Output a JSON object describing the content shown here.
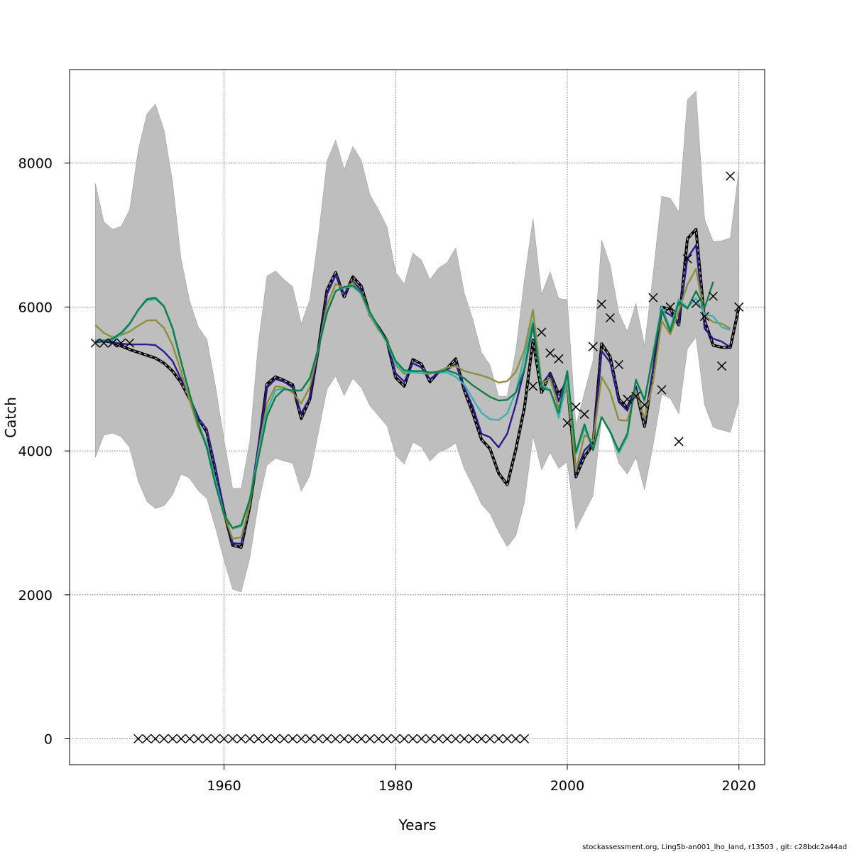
{
  "chart_data": {
    "type": "line",
    "xlabel": "Years",
    "ylabel": "Catch",
    "xlim": [
      1942,
      2023
    ],
    "ylim": [
      -360,
      9300
    ],
    "x_ticks": [
      1960,
      1980,
      2000,
      2020
    ],
    "y_ticks": [
      0,
      2000,
      4000,
      6000,
      8000
    ],
    "grid": true,
    "band": {
      "color": "#bebebe",
      "years": [
        1945,
        1946,
        1947,
        1948,
        1949,
        1950,
        1951,
        1952,
        1953,
        1954,
        1955,
        1956,
        1957,
        1958,
        1959,
        1960,
        1961,
        1962,
        1963,
        1964,
        1965,
        1966,
        1967,
        1968,
        1969,
        1970,
        1971,
        1972,
        1973,
        1974,
        1975,
        1976,
        1977,
        1978,
        1979,
        1980,
        1981,
        1982,
        1983,
        1984,
        1985,
        1986,
        1987,
        1988,
        1989,
        1990,
        1991,
        1992,
        1993,
        1994,
        1995,
        1996,
        1997,
        1998,
        1999,
        2000,
        2001,
        2002,
        2003,
        2004,
        2005,
        2006,
        2007,
        2008,
        2009,
        2010,
        2011,
        2012,
        2013,
        2014,
        2015,
        2016,
        2017,
        2018,
        2019,
        2020
      ],
      "upper": [
        7720,
        7180,
        7080,
        7120,
        7350,
        8180,
        8680,
        8820,
        8460,
        7740,
        6660,
        6080,
        5720,
        5550,
        4900,
        4150,
        3480,
        3480,
        4130,
        5500,
        6430,
        6500,
        6380,
        6280,
        5770,
        6100,
        6980,
        8030,
        8320,
        7910,
        8230,
        8040,
        7560,
        7350,
        7110,
        6480,
        6320,
        6750,
        6650,
        6380,
        6540,
        6620,
        6820,
        6190,
        5820,
        5370,
        5190,
        4760,
        4760,
        5390,
        6380,
        7230,
        6170,
        6490,
        6120,
        6100,
        4350,
        4810,
        5260,
        6930,
        6580,
        5920,
        5660,
        6050,
        5460,
        6460,
        7540,
        7510,
        7320,
        8880,
        9000,
        7220,
        6910,
        6920,
        6960,
        7910
      ],
      "lower": [
        3910,
        4220,
        4250,
        4200,
        4050,
        3580,
        3300,
        3200,
        3240,
        3390,
        3680,
        3620,
        3450,
        3340,
        2930,
        2480,
        2080,
        2040,
        2510,
        3270,
        3800,
        3900,
        3860,
        3830,
        3440,
        3660,
        4260,
        4860,
        5040,
        4770,
        5010,
        4880,
        4630,
        4490,
        4350,
        3940,
        3820,
        4120,
        4060,
        3860,
        3980,
        4030,
        4110,
        3750,
        3520,
        3260,
        3130,
        2880,
        2670,
        2820,
        3290,
        4210,
        3740,
        3980,
        3760,
        3850,
        2910,
        3150,
        3380,
        4460,
        4260,
        3830,
        3680,
        3910,
        3460,
        4080,
        4790,
        4730,
        4520,
        5420,
        5580,
        4640,
        4330,
        4290,
        4260,
        4700
      ]
    },
    "series": [
      {
        "color": "#000000",
        "dashed": true,
        "years": [
          1945,
          1946,
          1947,
          1948,
          1949,
          1950,
          1951,
          1952,
          1953,
          1954,
          1955,
          1956,
          1957,
          1958,
          1959,
          1960,
          1961,
          1962,
          1963,
          1964,
          1965,
          1966,
          1967,
          1968,
          1969,
          1970,
          1971,
          1972,
          1973,
          1974,
          1975,
          1976,
          1977,
          1978,
          1979,
          1980,
          1981,
          1982,
          1983,
          1984,
          1985,
          1986,
          1987,
          1988,
          1989,
          1990,
          1991,
          1992,
          1993,
          1994,
          1995,
          1996,
          1997,
          1998,
          1999,
          2000,
          2001,
          2002,
          2003,
          2004,
          2005,
          2006,
          2007,
          2008,
          2009,
          2010,
          2011,
          2012,
          2013,
          2014,
          2015,
          2016,
          2017,
          2018,
          2019,
          2020
        ],
        "values": [
          5520,
          5530,
          5510,
          5460,
          5410,
          5370,
          5330,
          5290,
          5220,
          5110,
          4950,
          4720,
          4450,
          4260,
          3720,
          3150,
          2690,
          2660,
          3230,
          4020,
          4930,
          5030,
          4980,
          4920,
          4450,
          4720,
          5420,
          6240,
          6480,
          6140,
          6420,
          6290,
          5890,
          5720,
          5530,
          5020,
          4900,
          5270,
          5210,
          4960,
          5100,
          5150,
          5280,
          4840,
          4520,
          4160,
          4030,
          3690,
          3530,
          4020,
          4600,
          5540,
          4810,
          5080,
          4790,
          4940,
          3640,
          3920,
          4090,
          5490,
          5310,
          4720,
          4600,
          4850,
          4340,
          5090,
          6000,
          5970,
          5750,
          6950,
          7080,
          5810,
          5470,
          5440,
          5440,
          6000
        ]
      },
      {
        "color": "#2b1b8c",
        "dashed": false,
        "years": [
          1945,
          1946,
          1947,
          1948,
          1949,
          1950,
          1951,
          1952,
          1953,
          1954,
          1955,
          1956,
          1957,
          1958,
          1959,
          1960,
          1961,
          1962,
          1963,
          1964,
          1965,
          1966,
          1967,
          1968,
          1969,
          1970,
          1971,
          1972,
          1973,
          1974,
          1975,
          1976,
          1977,
          1978,
          1979,
          1980,
          1981,
          1982,
          1983,
          1984,
          1985,
          1986,
          1987,
          1988,
          1989,
          1990,
          1991,
          1992,
          1993,
          1994,
          1995,
          1996,
          1997,
          1998,
          1999,
          2000,
          2001,
          2002,
          2003,
          2004,
          2005,
          2006,
          2007,
          2008,
          2009,
          2010,
          2011,
          2012,
          2013,
          2014,
          2015,
          2016,
          2017,
          2018,
          2019
        ],
        "values": [
          5510,
          5520,
          5510,
          5490,
          5480,
          5480,
          5480,
          5470,
          5380,
          5250,
          5000,
          4750,
          4460,
          4300,
          3780,
          3160,
          2720,
          2710,
          3280,
          4080,
          4880,
          5000,
          4960,
          4880,
          4520,
          4740,
          5390,
          6180,
          6440,
          6180,
          6360,
          6230,
          5890,
          5690,
          5530,
          5080,
          4960,
          5220,
          5160,
          5000,
          5080,
          5130,
          5210,
          4880,
          4610,
          4240,
          4190,
          4050,
          4240,
          4650,
          5130,
          5740,
          4930,
          5080,
          4690,
          5060,
          3690,
          4010,
          4130,
          5390,
          5230,
          4680,
          4560,
          4900,
          4410,
          5150,
          5960,
          5890,
          5790,
          6680,
          6860,
          5700,
          5560,
          5520,
          5440
        ]
      },
      {
        "color": "#8f8e3a",
        "dashed": false,
        "years": [
          1945,
          1946,
          1947,
          1948,
          1949,
          1950,
          1951,
          1952,
          1953,
          1954,
          1955,
          1956,
          1957,
          1958,
          1959,
          1960,
          1961,
          1962,
          1963,
          1964,
          1965,
          1966,
          1967,
          1968,
          1969,
          1970,
          1971,
          1972,
          1973,
          1974,
          1975,
          1976,
          1977,
          1978,
          1979,
          1980,
          1981,
          1982,
          1983,
          1984,
          1985,
          1986,
          1987,
          1988,
          1989,
          1990,
          1991,
          1992,
          1993,
          1994,
          1995,
          1996,
          1997,
          1998,
          1999,
          2000,
          2001,
          2002,
          2003,
          2004,
          2005,
          2006,
          2007,
          2008,
          2009,
          2010,
          2011,
          2012,
          2013,
          2014,
          2015,
          2016,
          2017,
          2018,
          2019
        ],
        "values": [
          5750,
          5640,
          5580,
          5610,
          5660,
          5740,
          5810,
          5820,
          5710,
          5470,
          5100,
          4700,
          4320,
          4080,
          3580,
          3120,
          2780,
          2800,
          3250,
          3990,
          4660,
          4900,
          4880,
          4810,
          4660,
          4890,
          5420,
          6030,
          6320,
          6260,
          6340,
          6170,
          5880,
          5680,
          5540,
          5190,
          5070,
          5100,
          5080,
          5070,
          5110,
          5160,
          5180,
          5110,
          5080,
          5050,
          5010,
          4950,
          4970,
          5100,
          5400,
          5960,
          4950,
          5000,
          4600,
          4890,
          3720,
          4220,
          4140,
          5030,
          4820,
          4430,
          4420,
          4830,
          4450,
          4960,
          5810,
          5620,
          5950,
          6310,
          6530,
          5880,
          5790,
          5770,
          5700
        ]
      },
      {
        "color": "#3cb0b2",
        "dashed": false,
        "years": [
          1945,
          1946,
          1947,
          1948,
          1949,
          1950,
          1951,
          1952,
          1953,
          1954,
          1955,
          1956,
          1957,
          1958,
          1959,
          1960,
          1961,
          1962,
          1963,
          1964,
          1965,
          1966,
          1967,
          1968,
          1969,
          1970,
          1971,
          1972,
          1973,
          1974,
          1975,
          1976,
          1977,
          1978,
          1979,
          1980,
          1981,
          1982,
          1983,
          1984,
          1985,
          1986,
          1987,
          1988,
          1989,
          1990,
          1991,
          1992,
          1993,
          1994,
          1995,
          1996,
          1997,
          1998,
          1999,
          2000,
          2001,
          2002,
          2003,
          2004,
          2005,
          2006,
          2007,
          2008,
          2009,
          2010,
          2011,
          2012,
          2013,
          2014,
          2015,
          2016,
          2017,
          2018,
          2019
        ],
        "values": [
          5540,
          5540,
          5540,
          5620,
          5760,
          5960,
          6090,
          6110,
          6010,
          5700,
          5230,
          4780,
          4380,
          4090,
          3600,
          3120,
          2920,
          2950,
          3340,
          3960,
          4550,
          4850,
          4860,
          4840,
          4840,
          5020,
          5440,
          5940,
          6220,
          6270,
          6280,
          6190,
          5900,
          5700,
          5500,
          5210,
          5090,
          5090,
          5080,
          5080,
          5090,
          5090,
          5030,
          4920,
          4720,
          4530,
          4440,
          4430,
          4520,
          4820,
          5310,
          5810,
          4920,
          4850,
          4460,
          5000,
          3960,
          4310,
          4040,
          4470,
          4260,
          3970,
          4200,
          4980,
          4690,
          5370,
          6010,
          5700,
          6110,
          5990,
          6120,
          5900,
          5870,
          5720,
          5680
        ]
      },
      {
        "color": "#0f7f45",
        "dashed": false,
        "years": [
          1945,
          1946,
          1947,
          1948,
          1949,
          1950,
          1951,
          1952,
          1953,
          1954,
          1955,
          1956,
          1957,
          1958,
          1959,
          1960,
          1961,
          1962,
          1963,
          1964,
          1965,
          1966,
          1967,
          1968,
          1969,
          1970,
          1971,
          1972,
          1973,
          1974,
          1975,
          1976,
          1977,
          1978,
          1979,
          1980,
          1981,
          1982,
          1983,
          1984,
          1985,
          1986,
          1987,
          1988,
          1989,
          1990,
          1991,
          1992,
          1993,
          1994,
          1995,
          1996,
          1997,
          1998,
          1999,
          2000,
          2001,
          2002,
          2003,
          2004,
          2005,
          2006,
          2007,
          2008,
          2009,
          2010,
          2011,
          2012,
          2013,
          2014,
          2015,
          2016,
          2017
        ],
        "values": [
          5520,
          5530,
          5560,
          5640,
          5770,
          5960,
          6110,
          6130,
          6010,
          5710,
          5240,
          4790,
          4370,
          4040,
          3530,
          3110,
          2930,
          2970,
          3320,
          3900,
          4480,
          4750,
          4860,
          4840,
          4840,
          5010,
          5430,
          5920,
          6220,
          6280,
          6300,
          6200,
          5930,
          5720,
          5520,
          5250,
          5120,
          5110,
          5110,
          5090,
          5100,
          5120,
          5080,
          5010,
          4910,
          4830,
          4750,
          4700,
          4710,
          4810,
          5140,
          5770,
          4880,
          4840,
          4530,
          5110,
          3980,
          4370,
          4010,
          4470,
          4270,
          4000,
          4240,
          4990,
          4710,
          5330,
          5960,
          5660,
          6070,
          5980,
          6220,
          5990,
          6350
        ]
      }
    ],
    "points": {
      "marker": "x",
      "years": [
        1945,
        1946,
        1947,
        1948,
        1949,
        1950,
        1951,
        1952,
        1953,
        1954,
        1955,
        1956,
        1957,
        1958,
        1959,
        1960,
        1961,
        1962,
        1963,
        1964,
        1965,
        1966,
        1967,
        1968,
        1969,
        1970,
        1971,
        1972,
        1973,
        1974,
        1975,
        1976,
        1977,
        1978,
        1979,
        1980,
        1981,
        1982,
        1983,
        1984,
        1985,
        1986,
        1987,
        1988,
        1989,
        1990,
        1991,
        1992,
        1993,
        1994,
        1995,
        1996,
        1997,
        1998,
        1999,
        2000,
        2001,
        2002,
        2003,
        2004,
        2005,
        2006,
        2007,
        2008,
        2009,
        2010,
        2011,
        2012,
        2013,
        2014,
        2015,
        2016,
        2017,
        2018,
        2019,
        2020
      ],
      "values": [
        5500,
        5500,
        5500,
        5500,
        5500,
        0,
        0,
        0,
        0,
        0,
        0,
        0,
        0,
        0,
        0,
        0,
        0,
        0,
        0,
        0,
        0,
        0,
        0,
        0,
        0,
        0,
        0,
        0,
        0,
        0,
        0,
        0,
        0,
        0,
        0,
        0,
        0,
        0,
        0,
        0,
        0,
        0,
        0,
        0,
        0,
        0,
        0,
        0,
        0,
        0,
        0,
        4900,
        5650,
        5360,
        5280,
        4390,
        4610,
        4510,
        5450,
        6040,
        5850,
        5200,
        4720,
        4760,
        4640,
        6130,
        4850,
        6000,
        4130,
        6670,
        6050,
        5870,
        6150,
        5180,
        7820,
        6000
      ]
    },
    "footer": "stockassessment.org, Ling5b-an001_lho_land, r13503 , git: c28bdc2a44ad"
  }
}
